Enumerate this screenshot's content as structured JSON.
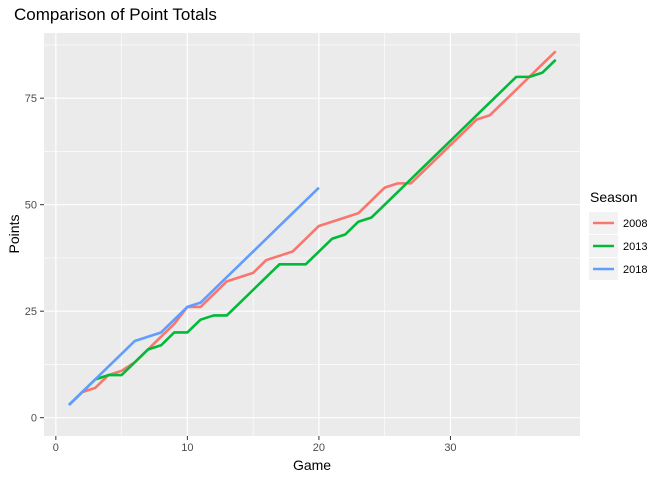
{
  "chart_data": {
    "type": "line",
    "title": "Comparison of Point Totals",
    "xlabel": "Game",
    "ylabel": "Points",
    "xlim": [
      -0.9,
      39.85
    ],
    "ylim": [
      -4.3,
      90.3
    ],
    "x_ticks": [
      0,
      10,
      20,
      30
    ],
    "y_ticks": [
      0,
      25,
      50,
      75
    ],
    "x_minor": [
      5,
      15,
      25,
      35
    ],
    "y_minor": [
      12.5,
      37.5,
      62.5,
      87.5
    ],
    "grid": true,
    "legend": {
      "title": "Season",
      "position": "right"
    },
    "series": [
      {
        "name": "2008",
        "color": "#F8766D",
        "points": [
          [
            1,
            3
          ],
          [
            2,
            6
          ],
          [
            3,
            7
          ],
          [
            4,
            10
          ],
          [
            5,
            11
          ],
          [
            6,
            13
          ],
          [
            7,
            16
          ],
          [
            8,
            19
          ],
          [
            9,
            22
          ],
          [
            10,
            26
          ],
          [
            11,
            26
          ],
          [
            12,
            29
          ],
          [
            13,
            32
          ],
          [
            14,
            33
          ],
          [
            15,
            34
          ],
          [
            16,
            37
          ],
          [
            17,
            38
          ],
          [
            18,
            39
          ],
          [
            19,
            42
          ],
          [
            20,
            45
          ],
          [
            21,
            46
          ],
          [
            22,
            47
          ],
          [
            23,
            48
          ],
          [
            24,
            51
          ],
          [
            25,
            54
          ],
          [
            26,
            55
          ],
          [
            27,
            55
          ],
          [
            28,
            58
          ],
          [
            29,
            61
          ],
          [
            30,
            64
          ],
          [
            31,
            67
          ],
          [
            32,
            70
          ],
          [
            33,
            71
          ],
          [
            34,
            74
          ],
          [
            35,
            77
          ],
          [
            36,
            80
          ],
          [
            37,
            83
          ],
          [
            38,
            86
          ]
        ]
      },
      {
        "name": "2013",
        "color": "#00BA38",
        "points": [
          [
            1,
            3
          ],
          [
            2,
            6
          ],
          [
            3,
            9
          ],
          [
            4,
            10
          ],
          [
            5,
            10
          ],
          [
            6,
            13
          ],
          [
            7,
            16
          ],
          [
            8,
            17
          ],
          [
            9,
            20
          ],
          [
            10,
            20
          ],
          [
            11,
            23
          ],
          [
            12,
            24
          ],
          [
            13,
            24
          ],
          [
            14,
            27
          ],
          [
            15,
            30
          ],
          [
            16,
            33
          ],
          [
            17,
            36
          ],
          [
            18,
            36
          ],
          [
            19,
            36
          ],
          [
            20,
            39
          ],
          [
            21,
            42
          ],
          [
            22,
            43
          ],
          [
            23,
            46
          ],
          [
            24,
            47
          ],
          [
            25,
            50
          ],
          [
            26,
            53
          ],
          [
            27,
            56
          ],
          [
            28,
            59
          ],
          [
            29,
            62
          ],
          [
            30,
            65
          ],
          [
            31,
            68
          ],
          [
            32,
            71
          ],
          [
            33,
            74
          ],
          [
            34,
            77
          ],
          [
            35,
            80
          ],
          [
            36,
            80
          ],
          [
            37,
            81
          ],
          [
            38,
            84
          ]
        ]
      },
      {
        "name": "2018",
        "color": "#619CFF",
        "points": [
          [
            1,
            3
          ],
          [
            2,
            6
          ],
          [
            3,
            9
          ],
          [
            4,
            12
          ],
          [
            5,
            15
          ],
          [
            6,
            18
          ],
          [
            7,
            19
          ],
          [
            8,
            20
          ],
          [
            9,
            23
          ],
          [
            10,
            26
          ],
          [
            11,
            27
          ],
          [
            12,
            30
          ],
          [
            13,
            33
          ],
          [
            14,
            36
          ],
          [
            15,
            39
          ],
          [
            16,
            42
          ],
          [
            17,
            45
          ],
          [
            18,
            48
          ],
          [
            19,
            51
          ],
          [
            20,
            54
          ]
        ]
      }
    ]
  }
}
